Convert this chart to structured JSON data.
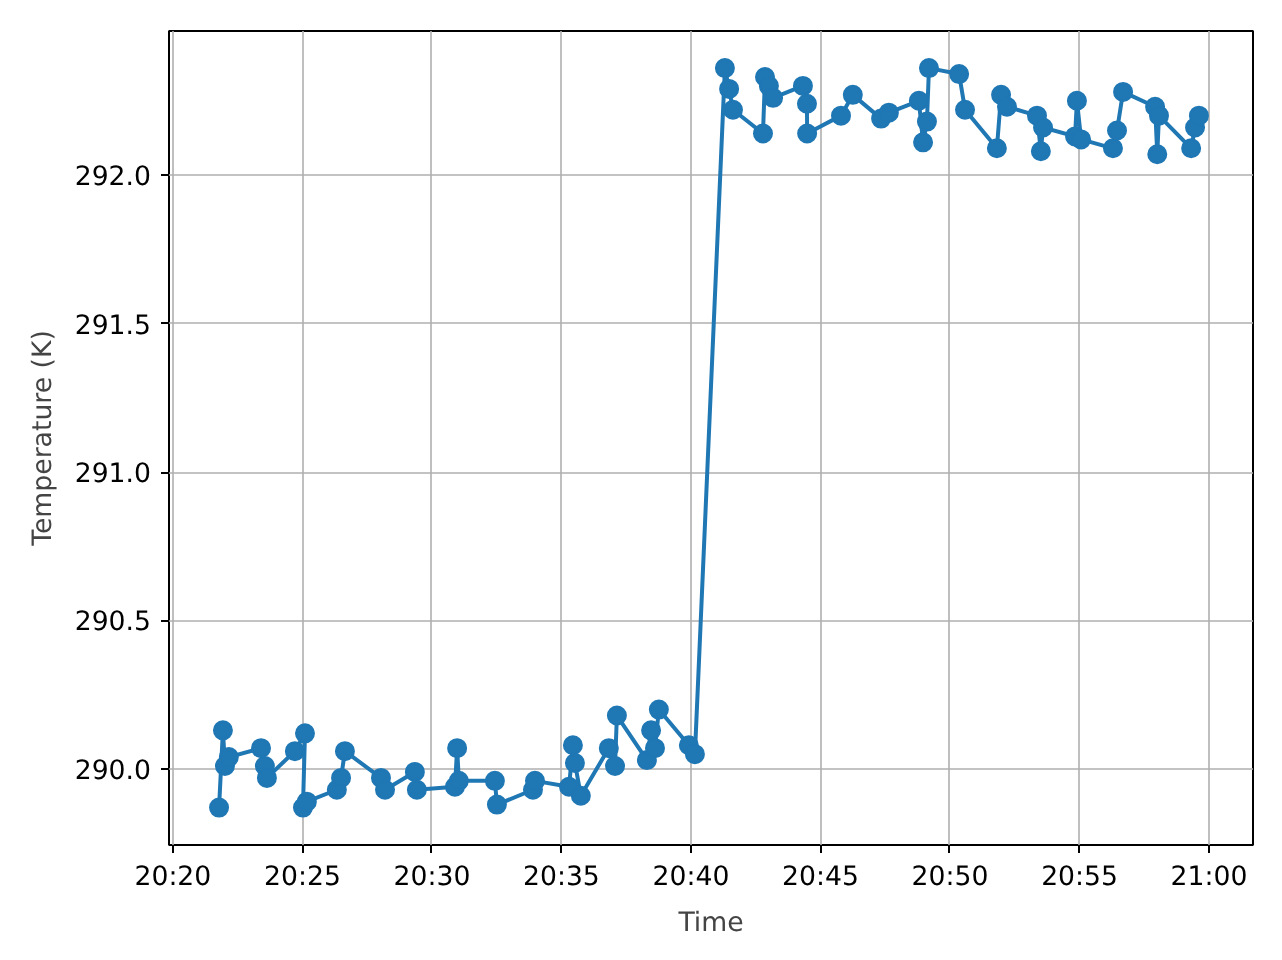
{
  "chart_data": {
    "type": "line",
    "xlabel": "Time",
    "ylabel": "Temperature (K)",
    "xlim": [
      20.3308,
      21.0283
    ],
    "ylim": [
      289.744,
      292.485
    ],
    "xticks": [
      {
        "value": 20.3333,
        "label": "20:20"
      },
      {
        "value": 20.4167,
        "label": "20:25"
      },
      {
        "value": 20.5,
        "label": "20:30"
      },
      {
        "value": 20.5833,
        "label": "20:35"
      },
      {
        "value": 20.6667,
        "label": "20:40"
      },
      {
        "value": 20.75,
        "label": "20:45"
      },
      {
        "value": 20.8333,
        "label": "20:50"
      },
      {
        "value": 20.9167,
        "label": "20:55"
      },
      {
        "value": 21.0,
        "label": "21:00"
      }
    ],
    "yticks": [
      {
        "value": 290,
        "label": "290.0"
      },
      290.5,
      {
        "value": 291,
        "label": "291.0"
      },
      291.5,
      {
        "value": 292,
        "label": "292.0"
      }
    ],
    "grid": true,
    "marker": "circle",
    "line_style": "solid",
    "x": [
      20.363,
      20.3655,
      20.3668,
      20.3693,
      20.39,
      20.3925,
      20.3938,
      20.4118,
      20.4183,
      20.417,
      20.4195,
      20.4388,
      20.4415,
      20.444,
      20.4672,
      20.4698,
      20.489,
      20.4903,
      20.5148,
      20.5162,
      20.5173,
      20.5405,
      20.5418,
      20.565,
      20.5663,
      20.5882,
      20.5907,
      20.592,
      20.5958,
      20.6138,
      20.6178,
      20.619,
      20.6383,
      20.641,
      20.6435,
      20.646,
      20.6653,
      20.6692,
      20.6885,
      20.6912,
      20.6937,
      20.713,
      20.7143,
      20.7168,
      20.7195,
      20.7387,
      20.7413,
      20.7414,
      20.7632,
      20.7708,
      20.789,
      20.794,
      20.8133,
      20.816,
      20.8185,
      20.8198,
      20.8392,
      20.843,
      20.8635,
      20.8662,
      20.87,
      20.8893,
      20.8918,
      20.8932,
      20.9138,
      20.915,
      20.9177,
      20.9382,
      20.9408,
      20.9447,
      20.9653,
      20.9667,
      20.9678,
      20.9885,
      20.991,
      20.9935
    ],
    "series": [
      {
        "color": "#1f77b4",
        "values": [
          289.87,
          290.13,
          290.01,
          290.04,
          290.07,
          290.01,
          289.97,
          290.06,
          290.12,
          289.87,
          289.89,
          289.93,
          289.97,
          290.06,
          289.97,
          289.93,
          289.99,
          289.93,
          289.94,
          290.07,
          289.96,
          289.96,
          289.88,
          289.93,
          289.96,
          289.94,
          290.08,
          290.02,
          289.91,
          290.07,
          290.01,
          290.18,
          290.03,
          290.13,
          290.07,
          290.2,
          290.08,
          290.05,
          292.36,
          292.29,
          292.22,
          292.14,
          292.33,
          292.3,
          292.26,
          292.3,
          292.24,
          292.14,
          292.2,
          292.27,
          292.19,
          292.21,
          292.25,
          292.11,
          292.18,
          292.36,
          292.34,
          292.22,
          292.09,
          292.27,
          292.23,
          292.2,
          292.08,
          292.16,
          292.13,
          292.25,
          292.12,
          292.09,
          292.15,
          292.28,
          292.23,
          292.07,
          292.2,
          292.09,
          292.16,
          292.2
        ]
      }
    ]
  }
}
